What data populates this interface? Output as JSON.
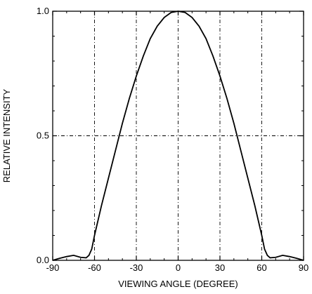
{
  "chart_data": {
    "type": "line",
    "title": "",
    "xlabel": "VIEWING ANGLE (DEGREE)",
    "ylabel": "RELATIVE  INTENSITY",
    "xlim": [
      -90,
      90
    ],
    "ylim": [
      0,
      1
    ],
    "x_ticks": [
      -90,
      -60,
      -30,
      0,
      30,
      60,
      90
    ],
    "x_tick_labels": [
      "-90",
      "-60",
      "-30",
      "0",
      "30",
      "60",
      "90"
    ],
    "y_ticks": [
      0,
      0.5,
      1
    ],
    "y_tick_labels": [
      "0.0",
      "0.5",
      "1.0"
    ],
    "grid": "dashed",
    "series": [
      {
        "color": "#000000",
        "x": [
          -90,
          -85,
          -80,
          -75,
          -70,
          -66,
          -64,
          -62,
          -60,
          -55,
          -50,
          -45,
          -40,
          -35,
          -30,
          -25,
          -20,
          -15,
          -10,
          -5,
          0,
          5,
          10,
          15,
          20,
          25,
          30,
          35,
          40,
          45,
          50,
          55,
          60,
          62,
          64,
          66,
          70,
          75,
          80,
          85,
          90
        ],
        "y": [
          0.0,
          0.008,
          0.015,
          0.02,
          0.012,
          0.01,
          0.02,
          0.045,
          0.1,
          0.22,
          0.33,
          0.44,
          0.55,
          0.65,
          0.74,
          0.82,
          0.89,
          0.94,
          0.975,
          0.995,
          1.0,
          0.995,
          0.975,
          0.94,
          0.89,
          0.82,
          0.74,
          0.65,
          0.55,
          0.44,
          0.33,
          0.22,
          0.1,
          0.045,
          0.02,
          0.01,
          0.012,
          0.02,
          0.015,
          0.008,
          0.0
        ]
      }
    ]
  }
}
